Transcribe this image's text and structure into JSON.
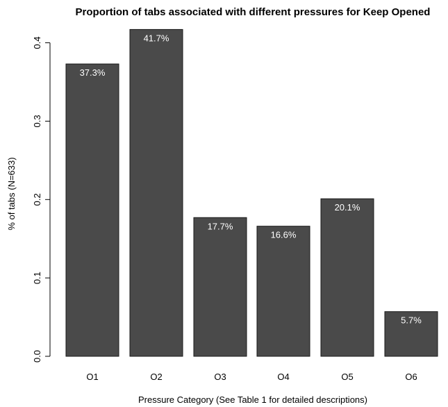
{
  "chart_data": {
    "type": "bar",
    "title": "Proportion of tabs associated with different pressures for Keep Opened",
    "xlabel": "Pressure Category (See Table 1 for detailed descriptions)",
    "ylabel": "% of tabs (N=633)",
    "categories": [
      "O1",
      "O2",
      "O3",
      "O4",
      "O5",
      "O6"
    ],
    "values": [
      0.373,
      0.417,
      0.177,
      0.166,
      0.201,
      0.057
    ],
    "data_labels": [
      "37.3%",
      "41.7%",
      "17.7%",
      "16.6%",
      "20.1%",
      "5.7%"
    ],
    "ylim": [
      0,
      0.42
    ],
    "yticks": [
      0.0,
      0.1,
      0.2,
      0.3,
      0.4
    ],
    "ytick_labels": [
      "0.0",
      "0.1",
      "0.2",
      "0.3",
      "0.4"
    ],
    "grid": false,
    "bar_color": "#4a4a4a",
    "bar_edge_color": "#1a1a1a",
    "label_color": "#ffffff"
  }
}
